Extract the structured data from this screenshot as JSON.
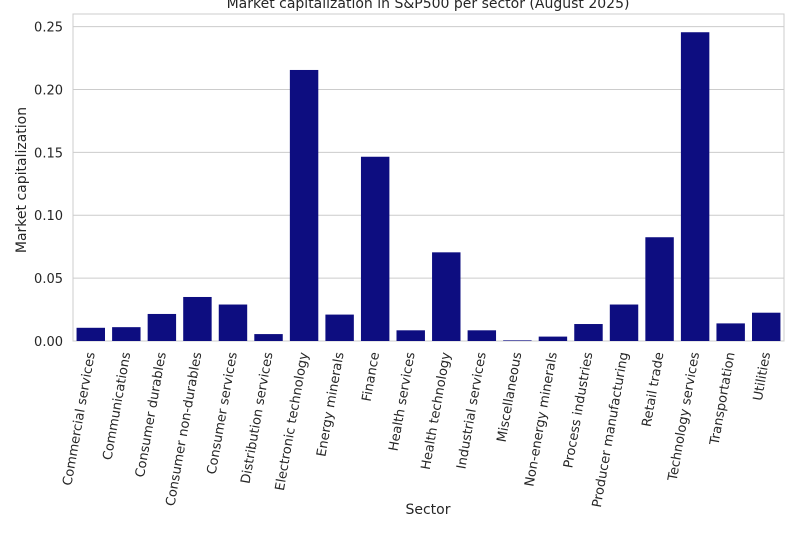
{
  "chart_data": {
    "type": "bar",
    "title": "Market capitalization in S&P500 per sector (August 2025)",
    "xlabel": "Sector",
    "ylabel": "Market capitalization",
    "ylim": [
      0,
      0.26
    ],
    "yticks": [
      "0.00",
      "0.05",
      "0.10",
      "0.15",
      "0.20",
      "0.25"
    ],
    "ytick_values": [
      0,
      0.05,
      0.1,
      0.15,
      0.2,
      0.25
    ],
    "grid": true,
    "bar_color": "#0d0d80",
    "grid_color": "#cccccc",
    "categories": [
      "Commercial services",
      "Communications",
      "Consumer durables",
      "Consumer non-durables",
      "Consumer services",
      "Distribution services",
      "Electronic technology",
      "Energy minerals",
      "Finance",
      "Health services",
      "Health technology",
      "Industrial services",
      "Miscellaneous",
      "Non-energy minerals",
      "Process industries",
      "Producer manufacturing",
      "Retail trade",
      "Technology services",
      "Transportation",
      "Utilities"
    ],
    "values": [
      0.0105,
      0.011,
      0.0215,
      0.035,
      0.029,
      0.0055,
      0.2155,
      0.021,
      0.1465,
      0.0085,
      0.0705,
      0.0085,
      0.0005,
      0.0035,
      0.0135,
      0.029,
      0.0825,
      0.2455,
      0.014,
      0.0225
    ]
  }
}
